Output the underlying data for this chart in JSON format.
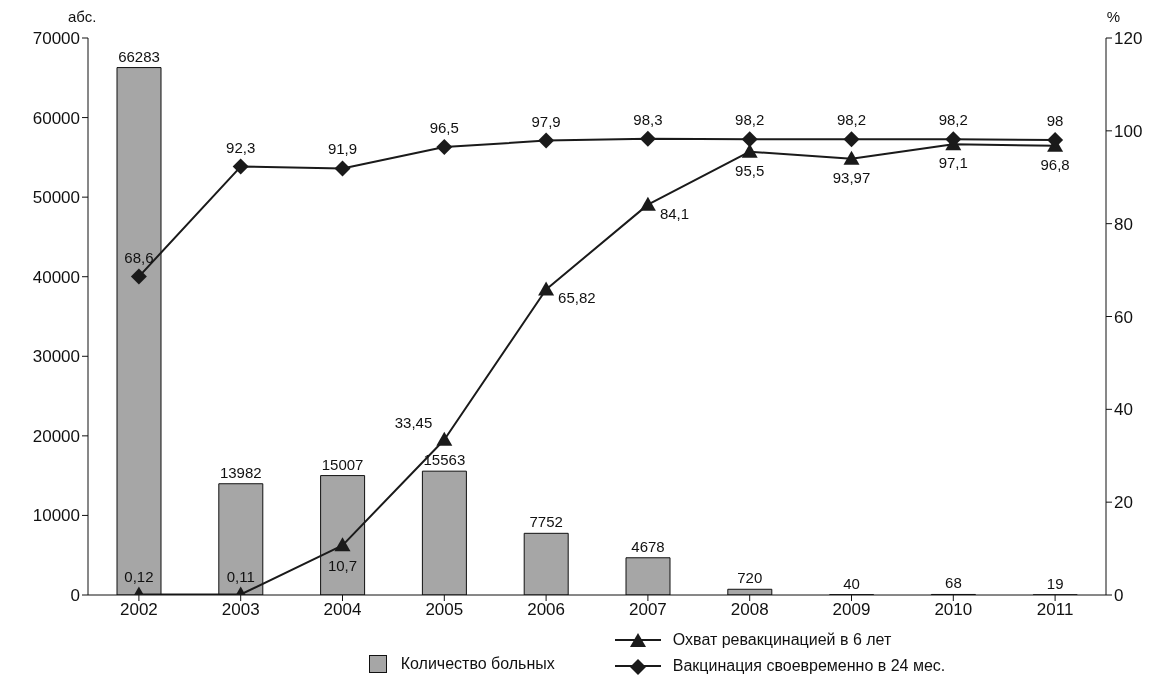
{
  "chart_data": {
    "type": "bar",
    "ylabel": "абс.",
    "y2label": "%",
    "categories": [
      "2002",
      "2003",
      "2004",
      "2005",
      "2006",
      "2007",
      "2008",
      "2009",
      "2010",
      "2011"
    ],
    "series": [
      {
        "name": "Количество больных",
        "color": "#a6a6a6",
        "values": [
          66283,
          13982,
          15007,
          15563,
          7752,
          4678,
          720,
          40,
          68,
          19
        ],
        "value_labels": [
          "66283",
          "13982",
          "15007",
          "15563",
          "7752",
          "4678",
          "720",
          "40",
          "68",
          "19"
        ]
      },
      {
        "name": "Охват ревакцинацией в 6 лет",
        "type": "line",
        "axis": "y2",
        "color": "#1a1a1a",
        "marker": "triangle",
        "values": [
          0.12,
          0.11,
          10.7,
          33.45,
          65.82,
          84.1,
          95.5,
          93.97,
          97.1,
          96.8
        ],
        "value_labels": [
          "0,12",
          "0,11",
          "10,7",
          "33,45",
          "65,82",
          "84,1",
          "95,5",
          "93,97",
          "97,1",
          "96,8"
        ]
      },
      {
        "name": "Вакцинация своевременно в 24 мес.",
        "type": "line",
        "axis": "y2",
        "color": "#1a1a1a",
        "marker": "diamond",
        "values": [
          68.6,
          92.3,
          91.9,
          96.5,
          97.9,
          98.3,
          98.2,
          98.2,
          98.2,
          98
        ],
        "value_labels": [
          "68,6",
          "92,3",
          "91,9",
          "96,5",
          "97,9",
          "98,3",
          "98,2",
          "98,2",
          "98,2",
          "98"
        ]
      }
    ],
    "ylim": [
      0,
      70000
    ],
    "yticks": [
      0,
      10000,
      20000,
      30000,
      40000,
      50000,
      60000,
      70000
    ],
    "y2lim": [
      0,
      120
    ],
    "y2ticks": [
      0,
      20,
      40,
      60,
      80,
      100,
      120
    ],
    "grid": false,
    "legend": "bottom",
    "line_style": "solid"
  }
}
